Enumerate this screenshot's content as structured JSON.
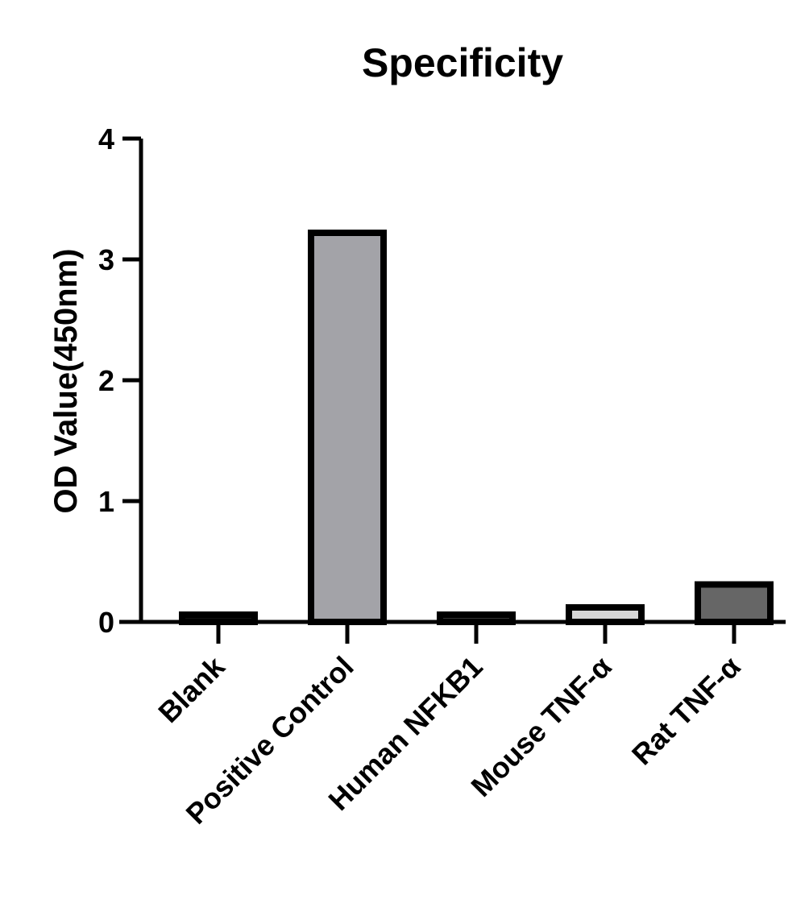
{
  "chart_data": {
    "type": "bar",
    "title": "Specificity",
    "xlabel": "",
    "ylabel": "OD Value(450nm)",
    "ylim": [
      0,
      4
    ],
    "yticks": [
      0,
      1,
      2,
      3,
      4
    ],
    "categories": [
      "Blank",
      "Positive Control",
      "Human NFKB1",
      "Mouse TNF-α",
      "Rat TNF-α"
    ],
    "values": [
      0.06,
      3.22,
      0.06,
      0.12,
      0.31
    ],
    "colors": [
      "#111111",
      "#a3a3a8",
      "#333333",
      "#d6d6d6",
      "#666666"
    ],
    "grid": false,
    "legend": "none"
  }
}
